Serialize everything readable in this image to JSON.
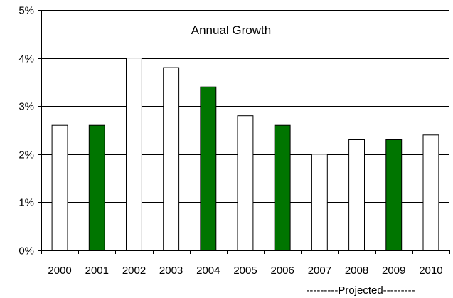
{
  "chart_data": {
    "type": "bar",
    "title": "Annual Growth",
    "xlabel": "",
    "ylabel": "",
    "categories": [
      "2000",
      "2001",
      "2002",
      "2003",
      "2004",
      "2005",
      "2006",
      "2007",
      "2008",
      "2009",
      "2010"
    ],
    "values": [
      2.6,
      2.6,
      4.0,
      3.8,
      3.4,
      2.8,
      2.6,
      2.0,
      2.3,
      2.3,
      2.4
    ],
    "highlighted": [
      false,
      true,
      false,
      false,
      true,
      false,
      true,
      false,
      false,
      true,
      false
    ],
    "ylim": [
      0,
      5
    ],
    "yticks": [
      0,
      1,
      2,
      3,
      4,
      5
    ],
    "ytick_labels": [
      "0%",
      "1%",
      "2%",
      "3%",
      "4%",
      "5%"
    ],
    "grid": true,
    "colors": {
      "highlight_fill": "#007500",
      "default_fill": "#ffffff",
      "bar_stroke": "#000000",
      "grid": "#000000"
    },
    "annotation": "---------Projected---------"
  }
}
